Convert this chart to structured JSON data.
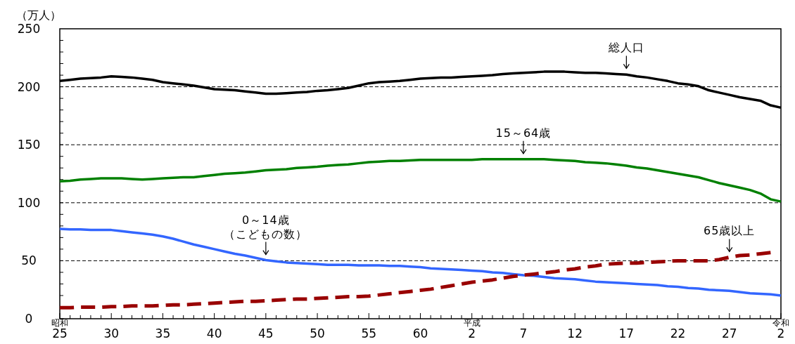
{
  "chart_data": {
    "type": "line",
    "ylabel": "（万人）",
    "ylim": [
      0,
      250
    ],
    "categories": [
      "$^{昭和}$25",
      null,
      null,
      null,
      null,
      "30",
      null,
      null,
      null,
      null,
      "35",
      null,
      null,
      null,
      null,
      "40",
      null,
      null,
      null,
      null,
      "45",
      null,
      null,
      null,
      null,
      "50",
      null,
      null,
      null,
      null,
      "55",
      null,
      null,
      null,
      null,
      "60",
      null,
      null,
      null,
      null,
      "$^{平成}$2",
      null,
      null,
      null,
      null,
      "7",
      null,
      null,
      null,
      null,
      "12",
      null,
      null,
      null,
      null,
      "17",
      null,
      null,
      null,
      null,
      "22",
      null,
      null,
      null,
      null,
      "27",
      null,
      null,
      null,
      null,
      "$^{令和}$2"
    ],
    "yticks": [
      0,
      50,
      100,
      150,
      200,
      250
    ],
    "grid": "y",
    "marker": "none",
    "series": [
      {
        "color": "#000000",
        "line_style": "solid",
        "values": [
          205,
          206,
          207,
          207.5,
          208,
          209,
          208.5,
          208,
          207,
          206,
          204,
          203,
          202,
          201,
          199.5,
          198,
          197.5,
          197,
          196,
          195,
          194,
          194,
          194.5,
          195,
          195.5,
          196.5,
          197,
          198,
          199,
          201,
          203,
          204,
          204.5,
          205,
          206,
          207,
          207.5,
          208,
          208,
          208.5,
          209,
          209.5,
          210,
          211,
          211.5,
          212,
          212.5,
          213,
          213,
          213,
          212.5,
          212,
          212,
          211.5,
          211,
          210.5,
          209,
          208,
          206.5,
          205,
          203,
          202,
          200.5,
          197,
          195,
          193,
          191,
          189.5,
          188,
          184,
          182
        ]
      },
      {
        "color": "#008000",
        "line_style": "solid",
        "values": [
          118.5,
          119,
          120,
          120.5,
          121,
          121,
          121,
          120.5,
          120,
          120.5,
          121,
          121.5,
          122,
          122,
          123,
          124,
          125,
          125.5,
          126,
          127,
          128,
          128.5,
          129,
          130,
          130.5,
          131,
          132,
          132.5,
          133,
          134,
          135,
          135.5,
          136,
          136,
          136.5,
          137,
          137,
          137,
          137,
          137,
          137,
          137.5,
          137.5,
          137.5,
          137.5,
          137.5,
          137.5,
          137.5,
          137,
          136.5,
          136,
          135,
          134.5,
          134,
          133,
          132,
          130.5,
          129.5,
          128,
          126.5,
          125,
          123.5,
          122,
          119.5,
          117,
          115,
          113,
          111,
          108,
          103,
          101
        ]
      },
      {
        "color": "#3366ff",
        "line_style": "solid",
        "values": [
          77.5,
          77,
          77,
          76.5,
          76.5,
          76.5,
          75.5,
          74.5,
          73.5,
          72.5,
          71,
          69,
          66.5,
          64,
          62,
          60,
          58,
          56,
          54.5,
          52.5,
          50.5,
          49.5,
          48.5,
          48,
          47.5,
          47,
          46.5,
          46.5,
          46.5,
          46,
          46,
          46,
          45.5,
          45.5,
          45,
          44.5,
          43.5,
          43,
          42.5,
          42,
          41.5,
          41,
          40,
          39.5,
          38.5,
          37.5,
          37,
          36,
          35,
          34.5,
          34,
          33,
          32,
          31.5,
          31,
          30.5,
          30,
          29.5,
          29,
          28,
          27.5,
          26.5,
          26,
          25,
          24.5,
          24,
          23,
          22,
          21.5,
          21,
          20
        ]
      },
      {
        "color": "#990000",
        "line_style": "dashed",
        "values": [
          9.5,
          9.5,
          10,
          10,
          10,
          10.5,
          10.5,
          11,
          11,
          11,
          11.5,
          12,
          12,
          12.5,
          13,
          13.5,
          14,
          14.5,
          15,
          15,
          15.5,
          16,
          16.5,
          17,
          17,
          17.5,
          18,
          18.5,
          19,
          19,
          19.5,
          20.5,
          21.5,
          22.5,
          23.5,
          24.5,
          25.5,
          27,
          28.5,
          30,
          31.5,
          32.5,
          33.5,
          35,
          36.5,
          37.5,
          38.5,
          39.5,
          40.5,
          42,
          43,
          44.5,
          45.5,
          47,
          47.5,
          48,
          48,
          48.5,
          49,
          49.5,
          50,
          50,
          50,
          50,
          51,
          53,
          54.5,
          55,
          56,
          57,
          null
        ]
      }
    ],
    "annotations": [
      {
        "text": "総人口",
        "x": "17",
        "y": 211
      },
      {
        "text": "15～64歳",
        "x": "7",
        "y": 137.5
      },
      {
        "text": "0～14歳（こどもの数）",
        "x": "45",
        "y": 50.5
      },
      {
        "text": "65歳以上",
        "x": "27",
        "y": 53
      }
    ]
  }
}
